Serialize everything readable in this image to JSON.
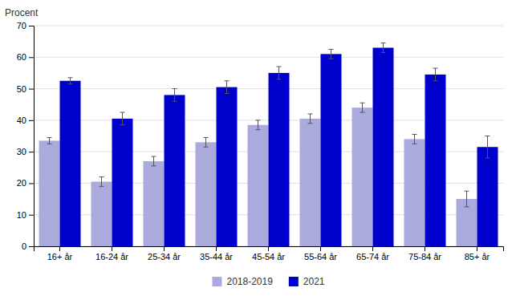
{
  "chart_data": {
    "type": "bar",
    "y_label": "Procent",
    "categories": [
      "16+ år",
      "16-24 år",
      "25-34 år",
      "35-44 år",
      "45-54 år",
      "55-64 år",
      "65-74 år",
      "75-84 år",
      "85+ år"
    ],
    "series": [
      {
        "name": "2018-2019",
        "color": "#aaaadd",
        "values": [
          33.5,
          20.5,
          27.0,
          33.0,
          38.5,
          40.5,
          44.0,
          34.0,
          15.0
        ],
        "errors": [
          1.0,
          1.5,
          1.5,
          1.5,
          1.5,
          1.5,
          1.5,
          1.5,
          2.5
        ]
      },
      {
        "name": "2021",
        "color": "#0000cc",
        "values": [
          52.5,
          40.5,
          48.0,
          50.5,
          55.0,
          61.0,
          63.0,
          54.5,
          31.5
        ],
        "errors": [
          1.0,
          2.0,
          2.0,
          2.0,
          2.0,
          1.5,
          1.5,
          2.0,
          3.5
        ]
      }
    ],
    "ylim": [
      0,
      70
    ],
    "yticks": [
      0,
      10,
      20,
      30,
      40,
      50,
      60,
      70
    ],
    "grid": true,
    "legend": "bottom"
  }
}
